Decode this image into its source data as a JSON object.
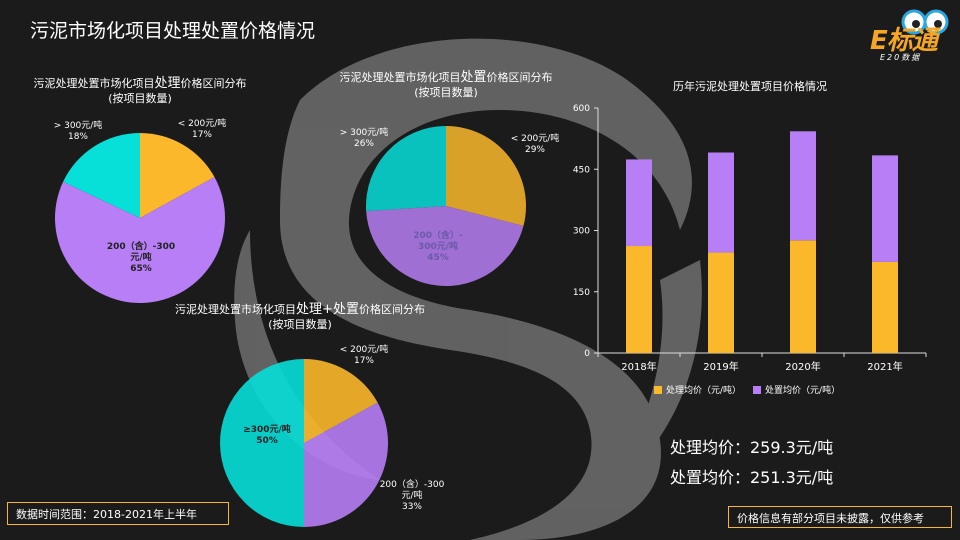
{
  "title": "污泥市场化项目处理处置价格情况",
  "logo": {
    "main": "E标通",
    "sub": "E20数据"
  },
  "colors": {
    "orange": "#fbb82b",
    "purple": "#b77ef5",
    "cyan": "#07dfd9",
    "border": "#f7b733"
  },
  "pie1": {
    "title_pre": "污泥处理处置市场化项目",
    "title_emph": "处理",
    "title_post": "价格区间分布",
    "title_line2": "(按项目数量)"
  },
  "pie2": {
    "title_pre": "污泥处理处置市场化项目",
    "title_emph": "处置",
    "title_post": "价格区间分布",
    "title_line2": "(按项目数量)"
  },
  "pie3": {
    "title_pre": "污泥处理处置市场化项目",
    "title_emph": "处理+处置",
    "title_post": "价格区间分布",
    "title_line2": "(按项目数量)"
  },
  "labels": {
    "p1_lt200": "< 200元/吨",
    "p1_lt200_pct": "17%",
    "p1_gt300": "> 300元/吨",
    "p1_gt300_pct": "18%",
    "p1_mid_a": "200（含）-300",
    "p1_mid_b": "元/吨",
    "p1_mid_pct": "65%",
    "p2_lt200": "< 200元/吨",
    "p2_lt200_pct": "29%",
    "p2_gt300": "> 300元/吨",
    "p2_gt300_pct": "26%",
    "p2_mid_a": "200（含）-",
    "p2_mid_b": "300元/吨",
    "p2_mid_pct": "45%",
    "p3_lt200": "< 200元/吨",
    "p3_lt200_pct": "17%",
    "p3_gte300": "≥300元/吨",
    "p3_gte300_pct": "50%",
    "p3_mid_a": "200（含）-300",
    "p3_mid_b": "元/吨",
    "p3_mid_pct": "33%"
  },
  "stats": {
    "treatment": "处理均价：259.3元/吨",
    "disposal": "处置均价：251.3元/吨"
  },
  "notes": {
    "time_range": "数据时间范围：2018-2021年上半年",
    "disclaimer": "价格信息有部分项目未披露，仅供参考"
  },
  "chart_data": [
    {
      "type": "pie",
      "title": "污泥处理处置市场化项目处理价格区间分布(按项目数量)",
      "slices": [
        {
          "label": "< 200元/吨",
          "value": 17,
          "color": "#fbb82b"
        },
        {
          "label": "200（含）-300元/吨",
          "value": 65,
          "color": "#b77ef5"
        },
        {
          "label": "> 300元/吨",
          "value": 18,
          "color": "#07dfd9"
        }
      ]
    },
    {
      "type": "pie",
      "title": "污泥处理处置市场化项目处置价格区间分布(按项目数量)",
      "slices": [
        {
          "label": "< 200元/吨",
          "value": 29,
          "color": "#fbb82b"
        },
        {
          "label": "200（含）-300元/吨",
          "value": 45,
          "color": "#b77ef5"
        },
        {
          "label": "> 300元/吨",
          "value": 26,
          "color": "#07dfd9"
        }
      ]
    },
    {
      "type": "pie",
      "title": "污泥处理处置市场化项目处理+处置价格区间分布(按项目数量)",
      "slices": [
        {
          "label": "< 200元/吨",
          "value": 17,
          "color": "#fbb82b"
        },
        {
          "label": "200（含）-300元/吨",
          "value": 33,
          "color": "#b77ef5"
        },
        {
          "label": "≥300元/吨",
          "value": 50,
          "color": "#07dfd9"
        }
      ]
    },
    {
      "type": "bar",
      "stacked": true,
      "title": "历年污泥处理处置项目价格情况",
      "categories": [
        "2018年",
        "2019年",
        "2020年",
        "2021年"
      ],
      "series": [
        {
          "name": "处理均价（元/吨）",
          "values": [
            262,
            246,
            276,
            223
          ],
          "color": "#fbb82b"
        },
        {
          "name": "处置均价（元/吨）",
          "values": [
            212,
            245,
            267,
            261
          ],
          "color": "#b77ef5"
        }
      ],
      "ylim": [
        0,
        600
      ],
      "yticks": [
        "0",
        "150",
        "300",
        "450",
        "600"
      ],
      "legend": "bottom"
    }
  ]
}
